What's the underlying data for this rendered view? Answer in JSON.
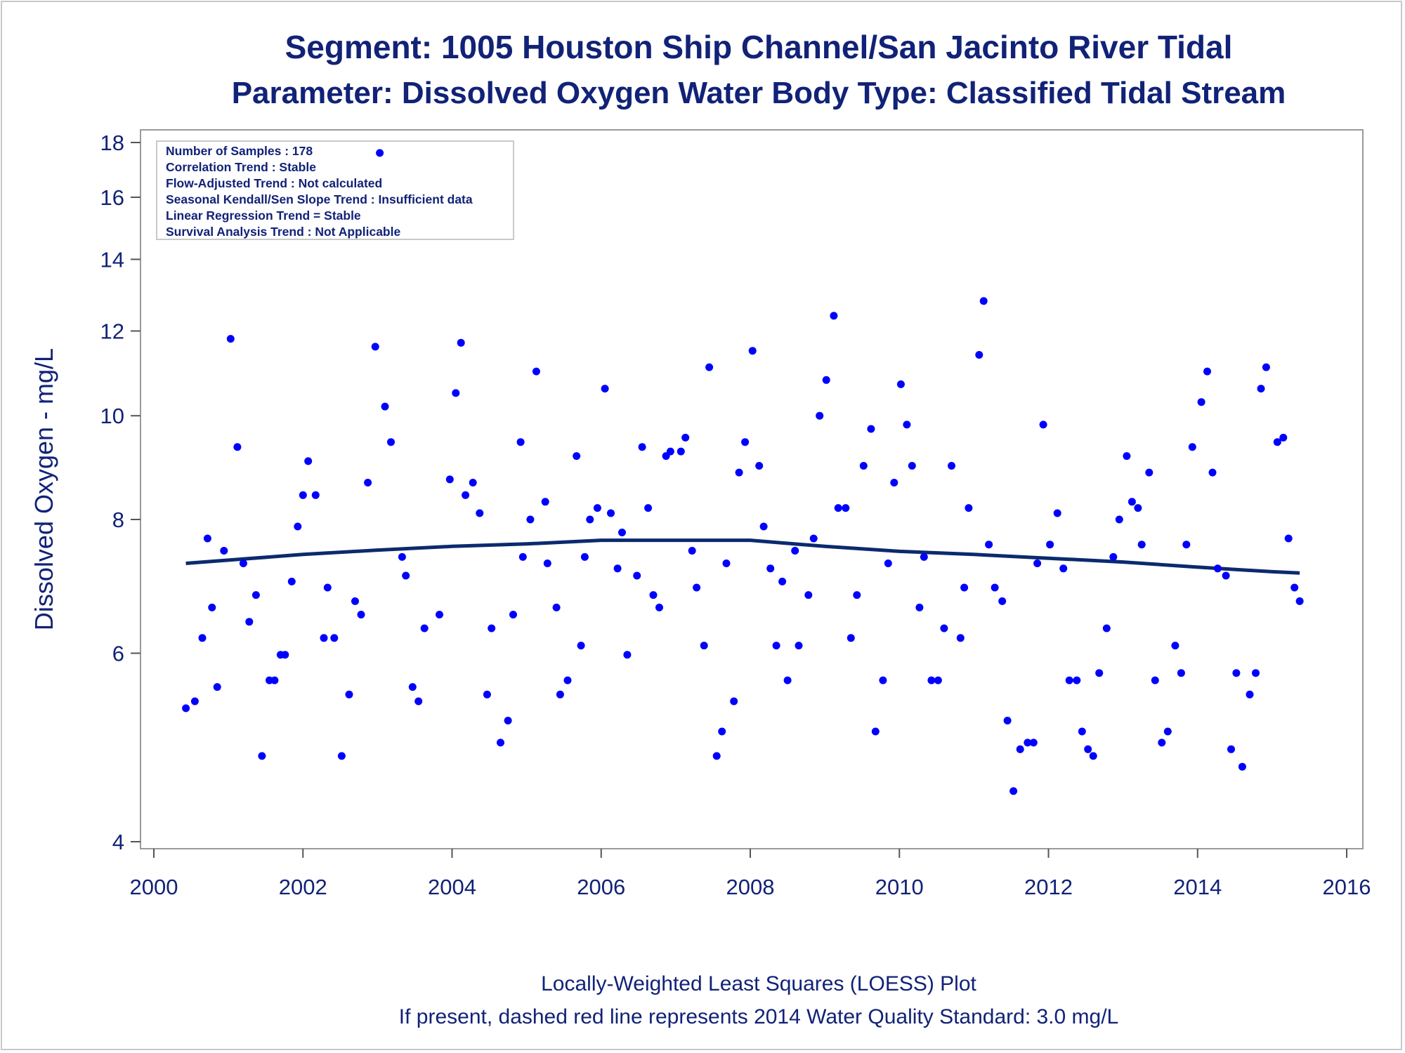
{
  "colors": {
    "title": "#112277",
    "marker": "#0000ff",
    "loess": "#0b2a6e",
    "frame": "#9a9a9a"
  },
  "chart_data": {
    "type": "scatter",
    "title": "Segment: 1005  Houston Ship Channel/San Jacinto River Tidal",
    "subtitle": "Parameter: Dissolved Oxygen   Water Body Type: Classified Tidal Stream",
    "ylabel": "Dissolved Oxygen - mg/L",
    "xlabel": "",
    "y_scale": "log",
    "xlim": [
      2000,
      2016
    ],
    "ylim": [
      4,
      18
    ],
    "x_ticks": [
      "2000",
      "2002",
      "2004",
      "2006",
      "2008",
      "2010",
      "2012",
      "2014",
      "2016"
    ],
    "y_ticks": [
      "4",
      "6",
      "8",
      "10",
      "12",
      "14",
      "16",
      "18"
    ],
    "info_box": [
      "Number of Samples : 178",
      "Correlation Trend : Stable",
      "Flow-Adjusted Trend : Not calculated",
      "Seasonal Kendall/Sen Slope Trend : Insufficient data",
      "Linear Regression Trend = Stable",
      "Survival Analysis Trend : Not Applicable"
    ],
    "footnotes": [
      "Locally-Weighted Least Squares (LOESS) Plot",
      "If present, dashed red line represents 2014 Water Quality Standard: 3.0 mg/L"
    ],
    "grid": false,
    "legend": "none",
    "series": [
      {
        "values": [
          [
            2000.43,
            5.33
          ],
          [
            2000.55,
            5.41
          ],
          [
            2000.65,
            6.2
          ],
          [
            2000.72,
            7.68
          ],
          [
            2000.78,
            6.62
          ],
          [
            2000.85,
            5.58
          ],
          [
            2000.94,
            7.48
          ],
          [
            2001.03,
            11.8
          ],
          [
            2001.12,
            9.35
          ],
          [
            2001.2,
            7.28
          ],
          [
            2001.28,
            6.42
          ],
          [
            2001.37,
            6.8
          ],
          [
            2001.45,
            4.81
          ],
          [
            2001.55,
            5.66
          ],
          [
            2001.62,
            5.66
          ],
          [
            2001.7,
            5.98
          ],
          [
            2001.76,
            5.98
          ],
          [
            2001.85,
            7.0
          ],
          [
            2001.93,
            7.88
          ],
          [
            2002.0,
            8.43
          ],
          [
            2002.07,
            9.07
          ],
          [
            2002.17,
            8.43
          ],
          [
            2002.28,
            6.2
          ],
          [
            2002.33,
            6.91
          ],
          [
            2002.42,
            6.2
          ],
          [
            2002.52,
            4.81
          ],
          [
            2002.62,
            5.49
          ],
          [
            2002.7,
            6.71
          ],
          [
            2002.78,
            6.52
          ],
          [
            2002.87,
            8.66
          ],
          [
            2002.97,
            11.6
          ],
          [
            2003.03,
            17.6
          ],
          [
            2003.1,
            10.2
          ],
          [
            2003.18,
            9.45
          ],
          [
            2003.33,
            7.38
          ],
          [
            2003.38,
            7.09
          ],
          [
            2003.47,
            5.58
          ],
          [
            2003.55,
            5.41
          ],
          [
            2003.63,
            6.33
          ],
          [
            2003.83,
            6.52
          ],
          [
            2003.97,
            8.72
          ],
          [
            2004.05,
            10.5
          ],
          [
            2004.12,
            11.7
          ],
          [
            2004.18,
            8.43
          ],
          [
            2004.28,
            8.66
          ],
          [
            2004.37,
            8.11
          ],
          [
            2004.47,
            5.49
          ],
          [
            2004.53,
            6.33
          ],
          [
            2004.65,
            4.95
          ],
          [
            2004.75,
            5.19
          ],
          [
            2004.82,
            6.52
          ],
          [
            2004.92,
            9.45
          ],
          [
            2004.95,
            7.38
          ],
          [
            2005.05,
            8.0
          ],
          [
            2005.13,
            11.0
          ],
          [
            2005.25,
            8.31
          ],
          [
            2005.28,
            7.28
          ],
          [
            2005.4,
            6.62
          ],
          [
            2005.45,
            5.49
          ],
          [
            2005.55,
            5.66
          ],
          [
            2005.67,
            9.17
          ],
          [
            2005.73,
            6.1
          ],
          [
            2005.78,
            7.38
          ],
          [
            2005.85,
            8.0
          ],
          [
            2005.95,
            8.2
          ],
          [
            2006.05,
            10.6
          ],
          [
            2006.13,
            8.11
          ],
          [
            2006.22,
            7.2
          ],
          [
            2006.28,
            7.78
          ],
          [
            2006.35,
            5.98
          ],
          [
            2006.48,
            7.09
          ],
          [
            2006.55,
            9.35
          ],
          [
            2006.63,
            8.2
          ],
          [
            2006.7,
            6.8
          ],
          [
            2006.78,
            6.62
          ],
          [
            2006.87,
            9.17
          ],
          [
            2006.93,
            9.26
          ],
          [
            2007.07,
            9.26
          ],
          [
            2007.13,
            9.54
          ],
          [
            2007.22,
            7.48
          ],
          [
            2007.28,
            6.91
          ],
          [
            2007.38,
            6.1
          ],
          [
            2007.45,
            11.1
          ],
          [
            2007.55,
            4.81
          ],
          [
            2007.62,
            5.07
          ],
          [
            2007.68,
            7.28
          ],
          [
            2007.78,
            5.41
          ],
          [
            2007.85,
            8.85
          ],
          [
            2007.93,
            9.45
          ],
          [
            2008.03,
            11.5
          ],
          [
            2008.12,
            8.98
          ],
          [
            2008.18,
            7.88
          ],
          [
            2008.27,
            7.2
          ],
          [
            2008.35,
            6.1
          ],
          [
            2008.43,
            7.0
          ],
          [
            2008.5,
            5.66
          ],
          [
            2008.6,
            7.48
          ],
          [
            2008.65,
            6.1
          ],
          [
            2008.78,
            6.8
          ],
          [
            2008.85,
            7.68
          ],
          [
            2008.93,
            10.0
          ],
          [
            2009.02,
            10.8
          ],
          [
            2009.12,
            12.4
          ],
          [
            2009.18,
            8.2
          ],
          [
            2009.28,
            8.2
          ],
          [
            2009.35,
            6.2
          ],
          [
            2009.43,
            6.8
          ],
          [
            2009.52,
            8.98
          ],
          [
            2009.62,
            9.72
          ],
          [
            2009.68,
            5.07
          ],
          [
            2009.78,
            5.66
          ],
          [
            2009.85,
            7.28
          ],
          [
            2009.93,
            8.66
          ],
          [
            2010.02,
            10.7
          ],
          [
            2010.1,
            9.81
          ],
          [
            2010.17,
            8.98
          ],
          [
            2010.27,
            6.62
          ],
          [
            2010.33,
            7.38
          ],
          [
            2010.43,
            5.66
          ],
          [
            2010.52,
            5.66
          ],
          [
            2010.6,
            6.33
          ],
          [
            2010.7,
            8.98
          ],
          [
            2010.82,
            6.2
          ],
          [
            2010.87,
            6.91
          ],
          [
            2010.93,
            8.2
          ],
          [
            2011.07,
            11.4
          ],
          [
            2011.13,
            12.8
          ],
          [
            2011.2,
            7.58
          ],
          [
            2011.28,
            6.91
          ],
          [
            2011.38,
            6.71
          ],
          [
            2011.45,
            5.19
          ],
          [
            2011.53,
            4.46
          ],
          [
            2011.62,
            4.88
          ],
          [
            2011.72,
            4.95
          ],
          [
            2011.8,
            4.95
          ],
          [
            2011.85,
            7.28
          ],
          [
            2011.93,
            9.81
          ],
          [
            2012.02,
            7.58
          ],
          [
            2012.12,
            8.11
          ],
          [
            2012.2,
            7.2
          ],
          [
            2012.28,
            5.66
          ],
          [
            2012.38,
            5.66
          ],
          [
            2012.45,
            5.07
          ],
          [
            2012.53,
            4.88
          ],
          [
            2012.6,
            4.81
          ],
          [
            2012.68,
            5.75
          ],
          [
            2012.78,
            6.33
          ],
          [
            2012.87,
            7.38
          ],
          [
            2012.95,
            8.0
          ],
          [
            2013.05,
            9.17
          ],
          [
            2013.12,
            8.31
          ],
          [
            2013.2,
            8.2
          ],
          [
            2013.25,
            7.58
          ],
          [
            2013.35,
            8.85
          ],
          [
            2013.43,
            5.66
          ],
          [
            2013.52,
            4.95
          ],
          [
            2013.6,
            5.07
          ],
          [
            2013.7,
            6.1
          ],
          [
            2013.78,
            5.75
          ],
          [
            2013.85,
            7.58
          ],
          [
            2013.93,
            9.35
          ],
          [
            2014.05,
            10.3
          ],
          [
            2014.13,
            11.0
          ],
          [
            2014.2,
            8.85
          ],
          [
            2014.27,
            7.2
          ],
          [
            2014.38,
            7.09
          ],
          [
            2014.45,
            4.88
          ],
          [
            2014.52,
            5.75
          ],
          [
            2014.6,
            4.7
          ],
          [
            2014.7,
            5.49
          ],
          [
            2014.78,
            5.75
          ],
          [
            2014.85,
            10.6
          ],
          [
            2014.92,
            11.1
          ],
          [
            2015.07,
            9.45
          ],
          [
            2015.15,
            9.54
          ],
          [
            2015.22,
            7.68
          ],
          [
            2015.3,
            6.91
          ],
          [
            2015.37,
            6.71
          ]
        ]
      }
    ],
    "loess": [
      [
        2000.43,
        7.28
      ],
      [
        2001.0,
        7.33
      ],
      [
        2002.0,
        7.42
      ],
      [
        2003.0,
        7.49
      ],
      [
        2004.0,
        7.55
      ],
      [
        2005.0,
        7.59
      ],
      [
        2006.0,
        7.65
      ],
      [
        2007.0,
        7.65
      ],
      [
        2008.0,
        7.65
      ],
      [
        2009.0,
        7.55
      ],
      [
        2010.0,
        7.47
      ],
      [
        2011.0,
        7.42
      ],
      [
        2012.0,
        7.36
      ],
      [
        2013.0,
        7.3
      ],
      [
        2014.0,
        7.22
      ],
      [
        2015.0,
        7.15
      ],
      [
        2015.37,
        7.13
      ]
    ]
  }
}
